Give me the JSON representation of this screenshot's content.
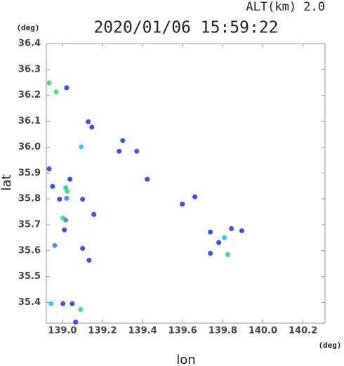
{
  "chart_data": {
    "type": "scatter",
    "title": "2020/01/06 15:59:22",
    "subtitle": "ALT(km) 2.0",
    "x_label": "lon",
    "y_label": "lat",
    "x_unit": "(deg)",
    "y_unit": "(deg)",
    "x": [
      139.021,
      138.969,
      138.934,
      139.129,
      139.147,
      139.094,
      138.934,
      139.038,
      138.951,
      139.017,
      139.024,
      139.101,
      138.986,
      139.003,
      139.017,
      139.01,
      138.962,
      139.101,
      139.133,
      139.157,
      139.283,
      139.371,
      139.423,
      139.598,
      139.661,
      139.738,
      139.78,
      139.808,
      139.825,
      139.843,
      139.895,
      139.738,
      138.944,
      139.003,
      139.049,
      139.091,
      139.066,
      139.301,
      139.021
    ],
    "values": [
      36.229,
      36.213,
      36.248,
      36.098,
      36.077,
      36.001,
      35.916,
      35.876,
      35.848,
      35.843,
      35.829,
      35.799,
      35.799,
      35.726,
      35.718,
      35.68,
      35.62,
      35.609,
      35.563,
      35.74,
      35.984,
      35.984,
      35.876,
      35.78,
      35.808,
      35.672,
      35.631,
      35.65,
      35.585,
      35.685,
      35.677,
      35.59,
      35.395,
      35.395,
      35.395,
      35.373,
      35.324,
      36.025,
      35.802
    ],
    "colors": [
      "#3a50f0",
      "#40e870",
      "#40e870",
      "#3a50f0",
      "#3a50f0",
      "#38c8f0",
      "#3a50f0",
      "#3a50f0",
      "#3a50f0",
      "#38c8f0",
      "#40e870",
      "#3a50f0",
      "#3a50f0",
      "#40e870",
      "#4a90ff",
      "#3a50f0",
      "#4a90ff",
      "#3a50f0",
      "#3a50f0",
      "#3a50f0",
      "#3a50f0",
      "#3a50f0",
      "#3a50f0",
      "#3a50f0",
      "#3a50f0",
      "#3a50f0",
      "#3a50f0",
      "#38c8f0",
      "#38c8f0",
      "#3a50f0",
      "#3a50f0",
      "#3a50f0",
      "#38c8f0",
      "#3a50f0",
      "#3a50f0",
      "#40e870",
      "#3a50f0",
      "#3a50f0",
      "#4a90ff"
    ],
    "xlim": [
      138.92,
      140.31
    ],
    "ylim": [
      35.32,
      36.4
    ],
    "xticks": [
      {
        "value": 139,
        "label": "139.0"
      },
      139.2,
      139.4,
      139.6,
      139.8,
      {
        "value": 140,
        "label": "140.0"
      },
      140.2
    ],
    "yticks": [
      35.4,
      35.5,
      35.6,
      35.7,
      35.8,
      35.9,
      {
        "value": 36,
        "label": "36.0"
      },
      36.1,
      36.2,
      36.3,
      36.4
    ]
  }
}
